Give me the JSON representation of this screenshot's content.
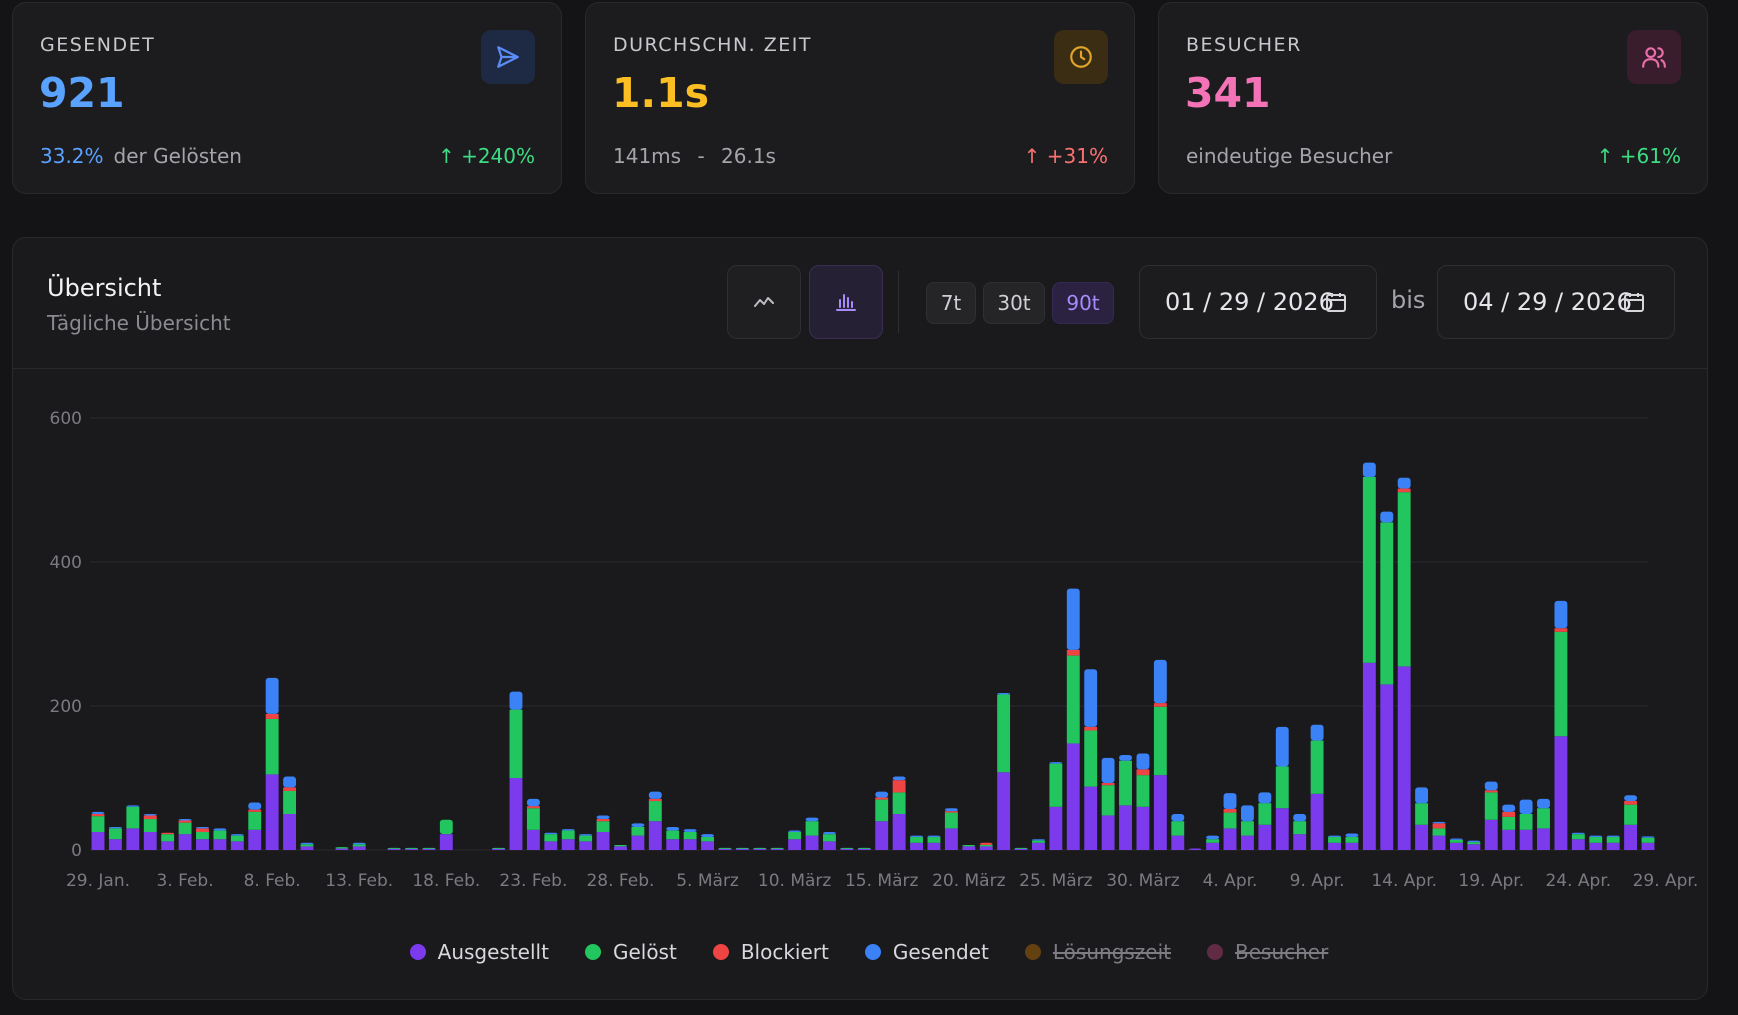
{
  "cards": [
    {
      "label": "GESENDET",
      "value": "921",
      "value_color": "#5aa2ff",
      "sub_highlight": "33.2%",
      "sub_text": "der Gelösten",
      "trend": "+240%",
      "trend_color": "#3ddc84",
      "icon": "send-icon",
      "icon_color": "#5b8cf7",
      "icon_bg": "#1e2a44"
    },
    {
      "label": "DURCHSCHN. ZEIT",
      "value": "1.1s",
      "value_color": "#fbbf24",
      "sub_highlight": "141ms",
      "sub_sep": "-",
      "sub_text": "26.1s",
      "trend": "+31%",
      "trend_color": "#f87171",
      "icon": "clock-icon",
      "icon_color": "#e0a526",
      "icon_bg": "#3a2d14"
    },
    {
      "label": "BESUCHER",
      "value": "341",
      "value_color": "#f472b6",
      "sub_text": "eindeutige Besucher",
      "trend": "+61%",
      "trend_color": "#3ddc84",
      "icon": "users-icon",
      "icon_color": "#e86fa8",
      "icon_bg": "#3a1d2d"
    }
  ],
  "overview": {
    "title": "Übersicht",
    "subtitle": "Tägliche Übersicht",
    "ranges": [
      "7t",
      "30t",
      "90t"
    ],
    "active_range": "90t",
    "date_from": "01 / 29 / 2026",
    "date_to": "04 / 29 / 2026",
    "between": "bis"
  },
  "legend": [
    {
      "label": "Ausgestellt",
      "color": "#7c3aed",
      "active": true
    },
    {
      "label": "Gelöst",
      "color": "#22c55e",
      "active": true
    },
    {
      "label": "Blockiert",
      "color": "#ef4444",
      "active": true
    },
    {
      "label": "Gesendet",
      "color": "#3b82f6",
      "active": true
    },
    {
      "label": "Lösungszeit",
      "color": "#a16207",
      "active": false
    },
    {
      "label": "Besucher",
      "color": "#9d3a66",
      "active": false
    }
  ],
  "chart_data": {
    "type": "bar",
    "stacked": true,
    "ylim": [
      0,
      600
    ],
    "yticks": [
      0,
      200,
      400,
      600
    ],
    "grid": true,
    "x_start": "2026-01-29",
    "x_end": "2026-04-29",
    "xtick_labels": [
      "29. Jan.",
      "3. Feb.",
      "8. Feb.",
      "13. Feb.",
      "18. Feb.",
      "23. Feb.",
      "28. Feb.",
      "5. März",
      "10. März",
      "15. März",
      "20. März",
      "25. März",
      "30. März",
      "4. Apr.",
      "9. Apr.",
      "14. Apr.",
      "19. Apr.",
      "24. Apr.",
      "29. Apr."
    ],
    "series": [
      {
        "name": "Ausgestellt",
        "color": "#7c3aed",
        "values": [
          25,
          15,
          30,
          25,
          12,
          22,
          15,
          15,
          12,
          28,
          105,
          50,
          5,
          0,
          2,
          5,
          0,
          2,
          2,
          2,
          22,
          0,
          0,
          2,
          100,
          28,
          12,
          15,
          12,
          25,
          5,
          20,
          40,
          15,
          15,
          12,
          2,
          2,
          2,
          2,
          15,
          20,
          12,
          2,
          2,
          40,
          50,
          10,
          10,
          30,
          5,
          5,
          108,
          2,
          10,
          60,
          148,
          88,
          48,
          62,
          60,
          104,
          20,
          2,
          10,
          30,
          20,
          35,
          58,
          22,
          78,
          10,
          10,
          260,
          230,
          255,
          35,
          20,
          10,
          8,
          42,
          28,
          28,
          30,
          158,
          15,
          10,
          10,
          35,
          10
        ]
      },
      {
        "name": "Gelöst",
        "color": "#22c55e",
        "values": [
          22,
          15,
          30,
          18,
          10,
          16,
          10,
          12,
          8,
          25,
          77,
          32,
          3,
          0,
          2,
          3,
          0,
          1,
          1,
          1,
          20,
          0,
          0,
          1,
          95,
          30,
          10,
          12,
          8,
          15,
          2,
          12,
          28,
          12,
          10,
          6,
          1,
          1,
          1,
          1,
          10,
          20,
          10,
          1,
          1,
          30,
          30,
          8,
          8,
          22,
          2,
          2,
          108,
          1,
          3,
          60,
          122,
          78,
          42,
          62,
          44,
          95,
          20,
          0,
          5,
          22,
          20,
          30,
          58,
          18,
          74,
          8,
          8,
          258,
          225,
          242,
          30,
          10,
          4,
          3,
          38,
          18,
          22,
          28,
          145,
          7,
          8,
          8,
          28,
          7
        ]
      },
      {
        "name": "Blockiert",
        "color": "#ef4444",
        "values": [
          3,
          0,
          0,
          5,
          2,
          3,
          5,
          0,
          0,
          3,
          7,
          5,
          0,
          0,
          0,
          0,
          0,
          0,
          0,
          0,
          0,
          0,
          0,
          0,
          0,
          3,
          0,
          0,
          0,
          3,
          0,
          0,
          3,
          0,
          0,
          0,
          0,
          0,
          0,
          0,
          0,
          0,
          0,
          0,
          0,
          3,
          17,
          0,
          0,
          2,
          0,
          3,
          0,
          0,
          0,
          0,
          8,
          5,
          3,
          0,
          8,
          5,
          0,
          0,
          0,
          5,
          0,
          0,
          0,
          0,
          0,
          0,
          0,
          0,
          0,
          5,
          0,
          7,
          0,
          0,
          3,
          7,
          0,
          0,
          5,
          0,
          0,
          0,
          5,
          0
        ]
      },
      {
        "name": "Gesendet",
        "color": "#3b82f6",
        "values": [
          3,
          2,
          2,
          2,
          0,
          2,
          2,
          3,
          2,
          10,
          50,
          15,
          2,
          0,
          0,
          2,
          0,
          0,
          0,
          0,
          0,
          0,
          0,
          0,
          25,
          10,
          2,
          2,
          2,
          5,
          0,
          5,
          10,
          5,
          4,
          4,
          0,
          0,
          0,
          0,
          2,
          5,
          3,
          0,
          0,
          8,
          5,
          2,
          2,
          4,
          0,
          0,
          2,
          0,
          2,
          2,
          85,
          80,
          35,
          8,
          22,
          60,
          10,
          0,
          5,
          22,
          22,
          15,
          55,
          10,
          22,
          2,
          5,
          20,
          15,
          15,
          22,
          2,
          2,
          2,
          12,
          10,
          20,
          13,
          38,
          2,
          2,
          2,
          8,
          2
        ]
      }
    ]
  }
}
